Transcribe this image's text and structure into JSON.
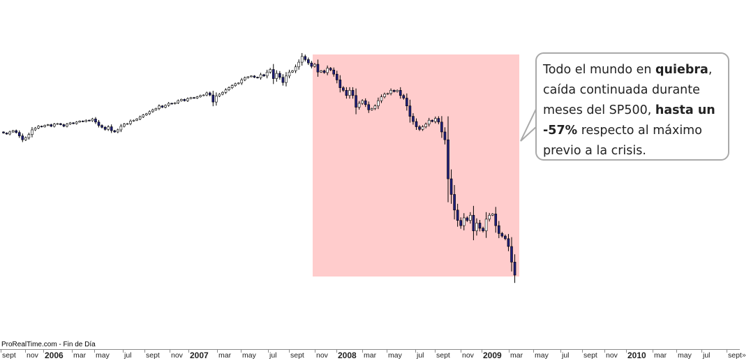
{
  "annotation": {
    "part1": "Todo el mundo en ",
    "bold1": "quiebra",
    "part2": ", caída continuada durante meses del SP500, ",
    "bold2": "hasta un -57%",
    "part3": " respecto al máximo previo a la crisis."
  },
  "watermark": "ProRealTime.com - Fin de Día",
  "scroll_label": "»",
  "colors": {
    "highlight": "#ffcccc",
    "candle_up": "#ffffff",
    "candle_down": "#1f1f7a",
    "wick": "#000000",
    "bubble_border": "#a9a9a9"
  },
  "chart_data": {
    "type": "candlestick",
    "title": "",
    "xlabel": "",
    "ylabel": "",
    "grid": false,
    "x_ticks": [
      {
        "label": "sept",
        "year": false
      },
      {
        "label": "nov",
        "year": false
      },
      {
        "label": "2006",
        "year": true
      },
      {
        "label": "mar",
        "year": false
      },
      {
        "label": "may",
        "year": false
      },
      {
        "label": "jul",
        "year": false
      },
      {
        "label": "sept",
        "year": false
      },
      {
        "label": "nov",
        "year": false
      },
      {
        "label": "2007",
        "year": true
      },
      {
        "label": "mar",
        "year": false
      },
      {
        "label": "may",
        "year": false
      },
      {
        "label": "jul",
        "year": false
      },
      {
        "label": "sept",
        "year": false
      },
      {
        "label": "nov",
        "year": false
      },
      {
        "label": "2008",
        "year": true
      },
      {
        "label": "mar",
        "year": false
      },
      {
        "label": "may",
        "year": false
      },
      {
        "label": "jul",
        "year": false
      },
      {
        "label": "sept",
        "year": false
      },
      {
        "label": "nov",
        "year": false
      },
      {
        "label": "2009",
        "year": true
      },
      {
        "label": "mar",
        "year": false
      },
      {
        "label": "may",
        "year": false
      },
      {
        "label": "jul",
        "year": false
      },
      {
        "label": "sept",
        "year": false
      },
      {
        "label": "nov",
        "year": false
      },
      {
        "label": "2010",
        "year": true
      },
      {
        "label": "mar",
        "year": false
      },
      {
        "label": "may",
        "year": false
      },
      {
        "label": "jul",
        "year": false
      },
      {
        "label": "sept",
        "year": false
      }
    ],
    "highlight_range": {
      "start": "2007-10",
      "end": "2009-03"
    },
    "weekly_closes": [
      1236,
      1232,
      1240,
      1245,
      1238,
      1225,
      1210,
      1218,
      1230,
      1248,
      1255,
      1262,
      1260,
      1265,
      1268,
      1262,
      1270,
      1272,
      1268,
      1262,
      1270,
      1275,
      1272,
      1278,
      1282,
      1280,
      1285,
      1283,
      1290,
      1278,
      1265,
      1258,
      1250,
      1260,
      1245,
      1240,
      1248,
      1262,
      1270,
      1272,
      1282,
      1285,
      1290,
      1298,
      1305,
      1310,
      1318,
      1325,
      1330,
      1340,
      1335,
      1342,
      1350,
      1348,
      1352,
      1360,
      1365,
      1360,
      1368,
      1372,
      1370,
      1375,
      1380,
      1382,
      1390,
      1382,
      1355,
      1378,
      1385,
      1392,
      1402,
      1410,
      1418,
      1425,
      1428,
      1440,
      1448,
      1452,
      1455,
      1450,
      1448,
      1460,
      1455,
      1470,
      1480,
      1445,
      1465,
      1450,
      1430,
      1455,
      1470,
      1475,
      1490,
      1508,
      1530,
      1518,
      1505,
      1492,
      1500,
      1470,
      1475,
      1468,
      1485,
      1478,
      1462,
      1440,
      1410,
      1400,
      1380,
      1400,
      1380,
      1335,
      1350,
      1360,
      1345,
      1325,
      1330,
      1340,
      1360,
      1375,
      1385,
      1388,
      1400,
      1395,
      1400,
      1380,
      1370,
      1340,
      1300,
      1280,
      1260,
      1250,
      1260,
      1270,
      1285,
      1280,
      1292,
      1278,
      1240,
      1210,
      1060,
      1000,
      940,
      900,
      880,
      910,
      900,
      920,
      860,
      890,
      870,
      860,
      905,
      920,
      925,
      880,
      850,
      840,
      830,
      800,
      740,
      690
    ]
  }
}
